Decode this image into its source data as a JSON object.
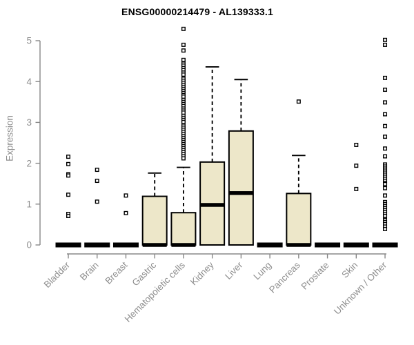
{
  "header": {
    "title": "ENSG00000214479 - AL139333.1"
  },
  "colors": {
    "background": "#ffffff",
    "box_fill": "#ede7c9",
    "box_stroke": "#000000",
    "median": "#000000",
    "whisker": "#000000",
    "outlier_fill": "#ffffff",
    "outlier_stroke": "#000000",
    "axis": "#878787",
    "tick_text": "#8e8e8e",
    "title_text": "#000000"
  },
  "chart_data": {
    "type": "boxplot",
    "title": "ENSG00000214479 - AL139333.1",
    "xlabel": "",
    "ylabel": "Expression",
    "ylim": [
      0,
      5
    ],
    "y_ticks": [
      0,
      1,
      2,
      3,
      4,
      5
    ],
    "grid": false,
    "legend": false,
    "categories": [
      "Bladder",
      "Brain",
      "Breast",
      "Gastric",
      "Hematopoietic cells",
      "Kidney",
      "Liver",
      "Lung",
      "Pancreas",
      "Prostate",
      "Skin",
      "Unknown / Other"
    ],
    "series": [
      {
        "name": "Bladder",
        "q1": 0,
        "median": 0,
        "q3": 0,
        "whisker_low": 0,
        "whisker_high": 0,
        "outliers": [
          2.16,
          1.98,
          1.73,
          1.7,
          1.23,
          0.76,
          0.71
        ]
      },
      {
        "name": "Brain",
        "q1": 0,
        "median": 0,
        "q3": 0,
        "whisker_low": 0,
        "whisker_high": 0,
        "outliers": [
          1.84,
          1.57,
          1.06
        ]
      },
      {
        "name": "Breast",
        "q1": 0,
        "median": 0,
        "q3": 0,
        "whisker_low": 0,
        "whisker_high": 0,
        "outliers": [
          1.21,
          0.78
        ]
      },
      {
        "name": "Gastric",
        "q1": 0,
        "median": 0,
        "q3": 1.19,
        "whisker_low": 0,
        "whisker_high": 1.76,
        "outliers": []
      },
      {
        "name": "Hematopoietic cells",
        "q1": 0,
        "median": 0,
        "q3": 0.79,
        "whisker_low": 0,
        "whisker_high": 1.9,
        "outliers": [
          5.29,
          4.9,
          4.76,
          4.53,
          4.44,
          4.39,
          4.33,
          4.28,
          4.22,
          4.17,
          4.07,
          4.02,
          3.97,
          3.92,
          3.87,
          3.82,
          3.77,
          3.72,
          3.67,
          3.63,
          3.55,
          3.5,
          3.45,
          3.4,
          3.34,
          3.29,
          3.24,
          3.16,
          3.11,
          3.06,
          3.01,
          2.92,
          2.87,
          2.82,
          2.77,
          2.72,
          2.67,
          2.62,
          2.57,
          2.52,
          2.47,
          2.42,
          2.37,
          2.32,
          2.27,
          2.22,
          2.17,
          2.12
        ]
      },
      {
        "name": "Kidney",
        "q1": 0,
        "median": 0.98,
        "q3": 2.03,
        "whisker_low": 0,
        "whisker_high": 4.36,
        "outliers": []
      },
      {
        "name": "Liver",
        "q1": 0,
        "median": 1.27,
        "q3": 2.79,
        "whisker_low": 0,
        "whisker_high": 4.05,
        "outliers": []
      },
      {
        "name": "Lung",
        "q1": 0,
        "median": 0,
        "q3": 0,
        "whisker_low": 0,
        "whisker_high": 0,
        "outliers": []
      },
      {
        "name": "Pancreas",
        "q1": 0,
        "median": 0,
        "q3": 1.26,
        "whisker_low": 0,
        "whisker_high": 2.19,
        "outliers": [
          3.51
        ]
      },
      {
        "name": "Prostate",
        "q1": 0,
        "median": 0,
        "q3": 0,
        "whisker_low": 0,
        "whisker_high": 0,
        "outliers": []
      },
      {
        "name": "Skin",
        "q1": 0,
        "median": 0,
        "q3": 0,
        "whisker_low": 0,
        "whisker_high": 0,
        "outliers": [
          2.45,
          1.94,
          1.37
        ]
      },
      {
        "name": "Unknown / Other",
        "q1": 0,
        "median": 0,
        "q3": 0,
        "whisker_low": 0,
        "whisker_high": 0,
        "outliers": [
          5.02,
          4.9,
          4.09,
          3.8,
          3.49,
          3.2,
          2.91,
          2.65,
          2.36,
          2.17,
          1.97,
          1.92,
          1.87,
          1.82,
          1.77,
          1.72,
          1.67,
          1.62,
          1.57,
          1.52,
          1.49,
          1.39,
          1.21,
          1.05,
          1.0,
          0.95,
          0.9,
          0.85,
          0.8,
          0.75,
          0.71,
          0.61,
          0.56,
          0.51,
          0.45,
          0.39
        ]
      }
    ]
  }
}
